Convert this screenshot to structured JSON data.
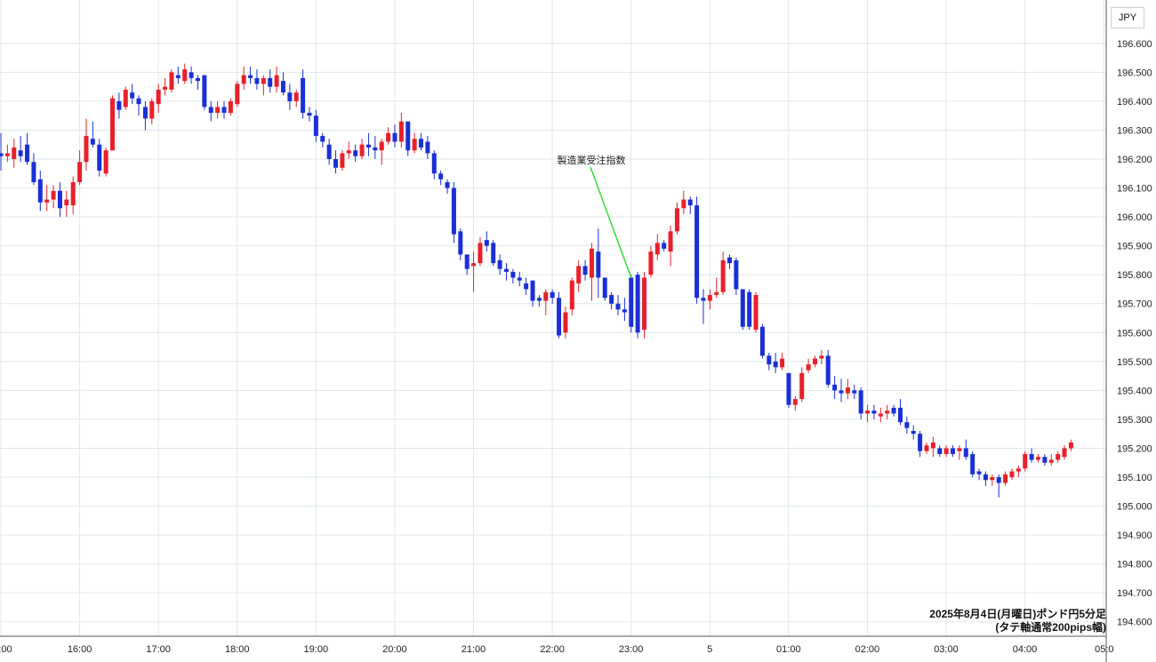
{
  "currency_label": "JPY",
  "caption": {
    "line1": "2025年8月4日(月曜日)ポンド円5分足",
    "line2": "(タテ軸通常200pips幅)"
  },
  "chart_data": {
    "type": "candlestick",
    "title": "2025年8月4日(月曜日)ポンド円5分足",
    "subtitle": "(タテ軸通常200pips幅)",
    "ylim": [
      194.55,
      196.75
    ],
    "y_ticks": [
      "196.600",
      "196.500",
      "196.400",
      "196.300",
      "196.200",
      "196.100",
      "196.000",
      "195.900",
      "195.800",
      "195.700",
      "195.600",
      "195.500",
      "195.400",
      "195.300",
      "195.200",
      "195.100",
      "195.000",
      "194.900",
      "194.800",
      "194.700",
      "194.600"
    ],
    "x_ticks": [
      ":00",
      "16:00",
      "17:00",
      "18:00",
      "19:00",
      "20:00",
      "21:00",
      "22:00",
      "23:00",
      "5",
      "01:00",
      "02:00",
      "03:00",
      "04:00",
      "05:0"
    ],
    "grid": true,
    "colors": {
      "up": "#e8202a",
      "down": "#1a2fd6",
      "grid": "#dfe7ec",
      "annotation_line": "#33dd33"
    },
    "annotation": {
      "text": "製造業受注指数",
      "candle_index": 96
    },
    "candles": [
      {
        "o": 196.22,
        "h": 196.29,
        "l": 196.16,
        "c": 196.21
      },
      {
        "o": 196.21,
        "h": 196.25,
        "l": 196.19,
        "c": 196.22
      },
      {
        "o": 196.2,
        "h": 196.27,
        "l": 196.17,
        "c": 196.24
      },
      {
        "o": 196.23,
        "h": 196.28,
        "l": 196.19,
        "c": 196.21
      },
      {
        "o": 196.25,
        "h": 196.29,
        "l": 196.18,
        "c": 196.19
      },
      {
        "o": 196.19,
        "h": 196.22,
        "l": 196.11,
        "c": 196.12
      },
      {
        "o": 196.13,
        "h": 196.16,
        "l": 196.02,
        "c": 196.05
      },
      {
        "o": 196.05,
        "h": 196.11,
        "l": 196.02,
        "c": 196.06
      },
      {
        "o": 196.06,
        "h": 196.11,
        "l": 196.03,
        "c": 196.09
      },
      {
        "o": 196.09,
        "h": 196.12,
        "l": 196.0,
        "c": 196.03
      },
      {
        "o": 196.04,
        "h": 196.09,
        "l": 196.0,
        "c": 196.06
      },
      {
        "o": 196.04,
        "h": 196.14,
        "l": 196.01,
        "c": 196.12
      },
      {
        "o": 196.12,
        "h": 196.23,
        "l": 196.11,
        "c": 196.19
      },
      {
        "o": 196.19,
        "h": 196.34,
        "l": 196.16,
        "c": 196.28
      },
      {
        "o": 196.27,
        "h": 196.33,
        "l": 196.24,
        "c": 196.25
      },
      {
        "o": 196.25,
        "h": 196.27,
        "l": 196.14,
        "c": 196.16
      },
      {
        "o": 196.15,
        "h": 196.24,
        "l": 196.14,
        "c": 196.23
      },
      {
        "o": 196.23,
        "h": 196.42,
        "l": 196.23,
        "c": 196.41
      },
      {
        "o": 196.4,
        "h": 196.43,
        "l": 196.34,
        "c": 196.37
      },
      {
        "o": 196.38,
        "h": 196.45,
        "l": 196.37,
        "c": 196.44
      },
      {
        "o": 196.43,
        "h": 196.46,
        "l": 196.39,
        "c": 196.41
      },
      {
        "o": 196.41,
        "h": 196.42,
        "l": 196.35,
        "c": 196.39
      },
      {
        "o": 196.38,
        "h": 196.4,
        "l": 196.3,
        "c": 196.34
      },
      {
        "o": 196.34,
        "h": 196.41,
        "l": 196.32,
        "c": 196.4
      },
      {
        "o": 196.39,
        "h": 196.46,
        "l": 196.36,
        "c": 196.44
      },
      {
        "o": 196.44,
        "h": 196.48,
        "l": 196.42,
        "c": 196.45
      },
      {
        "o": 196.44,
        "h": 196.51,
        "l": 196.43,
        "c": 196.5
      },
      {
        "o": 196.49,
        "h": 196.52,
        "l": 196.46,
        "c": 196.48
      },
      {
        "o": 196.47,
        "h": 196.53,
        "l": 196.46,
        "c": 196.51
      },
      {
        "o": 196.5,
        "h": 196.52,
        "l": 196.46,
        "c": 196.48
      },
      {
        "o": 196.48,
        "h": 196.49,
        "l": 196.44,
        "c": 196.47
      },
      {
        "o": 196.49,
        "h": 196.49,
        "l": 196.37,
        "c": 196.38
      },
      {
        "o": 196.38,
        "h": 196.4,
        "l": 196.33,
        "c": 196.36
      },
      {
        "o": 196.36,
        "h": 196.4,
        "l": 196.34,
        "c": 196.38
      },
      {
        "o": 196.38,
        "h": 196.4,
        "l": 196.34,
        "c": 196.36
      },
      {
        "o": 196.36,
        "h": 196.41,
        "l": 196.35,
        "c": 196.4
      },
      {
        "o": 196.39,
        "h": 196.47,
        "l": 196.38,
        "c": 196.46
      },
      {
        "o": 196.46,
        "h": 196.52,
        "l": 196.44,
        "c": 196.49
      },
      {
        "o": 196.49,
        "h": 196.52,
        "l": 196.46,
        "c": 196.48
      },
      {
        "o": 196.48,
        "h": 196.51,
        "l": 196.44,
        "c": 196.46
      },
      {
        "o": 196.46,
        "h": 196.49,
        "l": 196.42,
        "c": 196.48
      },
      {
        "o": 196.48,
        "h": 196.51,
        "l": 196.43,
        "c": 196.45
      },
      {
        "o": 196.45,
        "h": 196.52,
        "l": 196.43,
        "c": 196.49
      },
      {
        "o": 196.47,
        "h": 196.5,
        "l": 196.42,
        "c": 196.43
      },
      {
        "o": 196.43,
        "h": 196.46,
        "l": 196.37,
        "c": 196.4
      },
      {
        "o": 196.4,
        "h": 196.44,
        "l": 196.38,
        "c": 196.43
      },
      {
        "o": 196.48,
        "h": 196.51,
        "l": 196.34,
        "c": 196.36
      },
      {
        "o": 196.36,
        "h": 196.38,
        "l": 196.33,
        "c": 196.35
      },
      {
        "o": 196.35,
        "h": 196.37,
        "l": 196.26,
        "c": 196.28
      },
      {
        "o": 196.28,
        "h": 196.29,
        "l": 196.24,
        "c": 196.26
      },
      {
        "o": 196.25,
        "h": 196.27,
        "l": 196.18,
        "c": 196.2
      },
      {
        "o": 196.2,
        "h": 196.23,
        "l": 196.15,
        "c": 196.17
      },
      {
        "o": 196.17,
        "h": 196.23,
        "l": 196.16,
        "c": 196.22
      },
      {
        "o": 196.22,
        "h": 196.26,
        "l": 196.2,
        "c": 196.23
      },
      {
        "o": 196.23,
        "h": 196.25,
        "l": 196.19,
        "c": 196.21
      },
      {
        "o": 196.21,
        "h": 196.27,
        "l": 196.2,
        "c": 196.25
      },
      {
        "o": 196.25,
        "h": 196.29,
        "l": 196.21,
        "c": 196.24
      },
      {
        "o": 196.24,
        "h": 196.28,
        "l": 196.2,
        "c": 196.23
      },
      {
        "o": 196.23,
        "h": 196.27,
        "l": 196.18,
        "c": 196.26
      },
      {
        "o": 196.26,
        "h": 196.31,
        "l": 196.25,
        "c": 196.29
      },
      {
        "o": 196.29,
        "h": 196.32,
        "l": 196.24,
        "c": 196.26
      },
      {
        "o": 196.26,
        "h": 196.36,
        "l": 196.24,
        "c": 196.33
      },
      {
        "o": 196.33,
        "h": 196.33,
        "l": 196.21,
        "c": 196.23
      },
      {
        "o": 196.23,
        "h": 196.29,
        "l": 196.22,
        "c": 196.27
      },
      {
        "o": 196.27,
        "h": 196.29,
        "l": 196.23,
        "c": 196.24
      },
      {
        "o": 196.26,
        "h": 196.28,
        "l": 196.2,
        "c": 196.22
      },
      {
        "o": 196.22,
        "h": 196.23,
        "l": 196.13,
        "c": 196.15
      },
      {
        "o": 196.15,
        "h": 196.16,
        "l": 196.11,
        "c": 196.13
      },
      {
        "o": 196.12,
        "h": 196.13,
        "l": 196.08,
        "c": 196.1
      },
      {
        "o": 196.1,
        "h": 196.12,
        "l": 195.91,
        "c": 195.94
      },
      {
        "o": 195.95,
        "h": 195.96,
        "l": 195.85,
        "c": 195.87
      },
      {
        "o": 195.87,
        "h": 195.87,
        "l": 195.8,
        "c": 195.82
      },
      {
        "o": 195.83,
        "h": 195.88,
        "l": 195.74,
        "c": 195.84
      },
      {
        "o": 195.84,
        "h": 195.93,
        "l": 195.83,
        "c": 195.91
      },
      {
        "o": 195.92,
        "h": 195.95,
        "l": 195.88,
        "c": 195.9
      },
      {
        "o": 195.91,
        "h": 195.92,
        "l": 195.83,
        "c": 195.84
      },
      {
        "o": 195.85,
        "h": 195.87,
        "l": 195.8,
        "c": 195.82
      },
      {
        "o": 195.82,
        "h": 195.84,
        "l": 195.78,
        "c": 195.81
      },
      {
        "o": 195.81,
        "h": 195.82,
        "l": 195.77,
        "c": 195.79
      },
      {
        "o": 195.79,
        "h": 195.81,
        "l": 195.76,
        "c": 195.78
      },
      {
        "o": 195.77,
        "h": 195.79,
        "l": 195.73,
        "c": 195.75
      },
      {
        "o": 195.78,
        "h": 195.78,
        "l": 195.69,
        "c": 195.71
      },
      {
        "o": 195.72,
        "h": 195.73,
        "l": 195.69,
        "c": 195.71
      },
      {
        "o": 195.71,
        "h": 195.75,
        "l": 195.66,
        "c": 195.74
      },
      {
        "o": 195.74,
        "h": 195.75,
        "l": 195.7,
        "c": 195.72
      },
      {
        "o": 195.72,
        "h": 195.74,
        "l": 195.58,
        "c": 195.59
      },
      {
        "o": 195.6,
        "h": 195.69,
        "l": 195.58,
        "c": 195.67
      },
      {
        "o": 195.68,
        "h": 195.79,
        "l": 195.66,
        "c": 195.78
      },
      {
        "o": 195.77,
        "h": 195.85,
        "l": 195.74,
        "c": 195.83
      },
      {
        "o": 195.83,
        "h": 195.85,
        "l": 195.78,
        "c": 195.8
      },
      {
        "o": 195.79,
        "h": 195.91,
        "l": 195.71,
        "c": 195.89
      },
      {
        "o": 195.88,
        "h": 195.96,
        "l": 195.72,
        "c": 195.79
      },
      {
        "o": 195.79,
        "h": 195.79,
        "l": 195.71,
        "c": 195.72
      },
      {
        "o": 195.73,
        "h": 195.74,
        "l": 195.68,
        "c": 195.7
      },
      {
        "o": 195.7,
        "h": 195.73,
        "l": 195.66,
        "c": 195.68
      },
      {
        "o": 195.68,
        "h": 195.72,
        "l": 195.64,
        "c": 195.67
      },
      {
        "o": 195.79,
        "h": 195.8,
        "l": 195.6,
        "c": 195.62
      },
      {
        "o": 195.8,
        "h": 195.81,
        "l": 195.58,
        "c": 195.6
      },
      {
        "o": 195.61,
        "h": 195.81,
        "l": 195.58,
        "c": 195.79
      },
      {
        "o": 195.8,
        "h": 195.9,
        "l": 195.79,
        "c": 195.88
      },
      {
        "o": 195.87,
        "h": 195.94,
        "l": 195.85,
        "c": 195.91
      },
      {
        "o": 195.91,
        "h": 195.92,
        "l": 195.88,
        "c": 195.89
      },
      {
        "o": 195.88,
        "h": 195.97,
        "l": 195.83,
        "c": 195.95
      },
      {
        "o": 195.95,
        "h": 196.05,
        "l": 195.94,
        "c": 196.03
      },
      {
        "o": 196.03,
        "h": 196.09,
        "l": 196.01,
        "c": 196.06
      },
      {
        "o": 196.06,
        "h": 196.07,
        "l": 196.01,
        "c": 196.04
      },
      {
        "o": 196.04,
        "h": 196.07,
        "l": 195.7,
        "c": 195.72
      },
      {
        "o": 195.72,
        "h": 195.75,
        "l": 195.63,
        "c": 195.71
      },
      {
        "o": 195.71,
        "h": 195.75,
        "l": 195.68,
        "c": 195.73
      },
      {
        "o": 195.73,
        "h": 195.79,
        "l": 195.72,
        "c": 195.74
      },
      {
        "o": 195.74,
        "h": 195.88,
        "l": 195.73,
        "c": 195.85
      },
      {
        "o": 195.86,
        "h": 195.87,
        "l": 195.82,
        "c": 195.84
      },
      {
        "o": 195.85,
        "h": 195.86,
        "l": 195.73,
        "c": 195.75
      },
      {
        "o": 195.75,
        "h": 195.75,
        "l": 195.61,
        "c": 195.62
      },
      {
        "o": 195.74,
        "h": 195.75,
        "l": 195.61,
        "c": 195.62
      },
      {
        "o": 195.61,
        "h": 195.74,
        "l": 195.6,
        "c": 195.73
      },
      {
        "o": 195.62,
        "h": 195.63,
        "l": 195.51,
        "c": 195.52
      },
      {
        "o": 195.52,
        "h": 195.53,
        "l": 195.47,
        "c": 195.49
      },
      {
        "o": 195.5,
        "h": 195.53,
        "l": 195.46,
        "c": 195.48
      },
      {
        "o": 195.48,
        "h": 195.53,
        "l": 195.47,
        "c": 195.51
      },
      {
        "o": 195.46,
        "h": 195.46,
        "l": 195.34,
        "c": 195.35
      },
      {
        "o": 195.35,
        "h": 195.38,
        "l": 195.33,
        "c": 195.37
      },
      {
        "o": 195.37,
        "h": 195.48,
        "l": 195.36,
        "c": 195.46
      },
      {
        "o": 195.47,
        "h": 195.51,
        "l": 195.46,
        "c": 195.49
      },
      {
        "o": 195.49,
        "h": 195.52,
        "l": 195.48,
        "c": 195.51
      },
      {
        "o": 195.51,
        "h": 195.54,
        "l": 195.49,
        "c": 195.52
      },
      {
        "o": 195.52,
        "h": 195.54,
        "l": 195.41,
        "c": 195.42
      },
      {
        "o": 195.42,
        "h": 195.45,
        "l": 195.37,
        "c": 195.4
      },
      {
        "o": 195.4,
        "h": 195.44,
        "l": 195.36,
        "c": 195.39
      },
      {
        "o": 195.39,
        "h": 195.44,
        "l": 195.37,
        "c": 195.41
      },
      {
        "o": 195.4,
        "h": 195.42,
        "l": 195.37,
        "c": 195.39
      },
      {
        "o": 195.4,
        "h": 195.41,
        "l": 195.3,
        "c": 195.32
      },
      {
        "o": 195.32,
        "h": 195.35,
        "l": 195.29,
        "c": 195.33
      },
      {
        "o": 195.33,
        "h": 195.35,
        "l": 195.3,
        "c": 195.32
      },
      {
        "o": 195.31,
        "h": 195.34,
        "l": 195.29,
        "c": 195.32
      },
      {
        "o": 195.32,
        "h": 195.35,
        "l": 195.3,
        "c": 195.33
      },
      {
        "o": 195.34,
        "h": 195.35,
        "l": 195.31,
        "c": 195.32
      },
      {
        "o": 195.34,
        "h": 195.37,
        "l": 195.28,
        "c": 195.29
      },
      {
        "o": 195.29,
        "h": 195.31,
        "l": 195.25,
        "c": 195.27
      },
      {
        "o": 195.26,
        "h": 195.28,
        "l": 195.23,
        "c": 195.25
      },
      {
        "o": 195.25,
        "h": 195.26,
        "l": 195.17,
        "c": 195.19
      },
      {
        "o": 195.19,
        "h": 195.22,
        "l": 195.18,
        "c": 195.21
      },
      {
        "o": 195.2,
        "h": 195.24,
        "l": 195.17,
        "c": 195.22
      },
      {
        "o": 195.2,
        "h": 195.21,
        "l": 195.17,
        "c": 195.18
      },
      {
        "o": 195.18,
        "h": 195.21,
        "l": 195.17,
        "c": 195.2
      },
      {
        "o": 195.2,
        "h": 195.21,
        "l": 195.17,
        "c": 195.18
      },
      {
        "o": 195.19,
        "h": 195.21,
        "l": 195.16,
        "c": 195.2
      },
      {
        "o": 195.2,
        "h": 195.23,
        "l": 195.16,
        "c": 195.17
      },
      {
        "o": 195.18,
        "h": 195.19,
        "l": 195.1,
        "c": 195.11
      },
      {
        "o": 195.12,
        "h": 195.13,
        "l": 195.09,
        "c": 195.11
      },
      {
        "o": 195.11,
        "h": 195.12,
        "l": 195.07,
        "c": 195.09
      },
      {
        "o": 195.09,
        "h": 195.11,
        "l": 195.07,
        "c": 195.1
      },
      {
        "o": 195.1,
        "h": 195.11,
        "l": 195.03,
        "c": 195.08
      },
      {
        "o": 195.08,
        "h": 195.12,
        "l": 195.07,
        "c": 195.11
      },
      {
        "o": 195.1,
        "h": 195.13,
        "l": 195.09,
        "c": 195.12
      },
      {
        "o": 195.12,
        "h": 195.14,
        "l": 195.1,
        "c": 195.13
      },
      {
        "o": 195.13,
        "h": 195.19,
        "l": 195.12,
        "c": 195.18
      },
      {
        "o": 195.18,
        "h": 195.2,
        "l": 195.15,
        "c": 195.16
      },
      {
        "o": 195.16,
        "h": 195.18,
        "l": 195.15,
        "c": 195.17
      },
      {
        "o": 195.17,
        "h": 195.18,
        "l": 195.14,
        "c": 195.15
      },
      {
        "o": 195.15,
        "h": 195.18,
        "l": 195.14,
        "c": 195.16
      },
      {
        "o": 195.16,
        "h": 195.19,
        "l": 195.15,
        "c": 195.18
      },
      {
        "o": 195.17,
        "h": 195.21,
        "l": 195.16,
        "c": 195.2
      },
      {
        "o": 195.2,
        "h": 195.23,
        "l": 195.19,
        "c": 195.22
      }
    ]
  }
}
